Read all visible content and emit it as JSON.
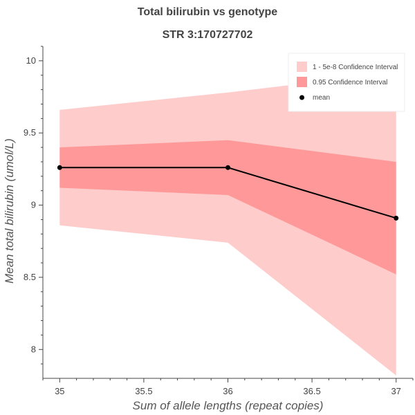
{
  "chart_data": {
    "type": "area",
    "title": "Total bilirubin vs genotype",
    "subtitle": "STR 3:170727702",
    "xlabel": "Sum of allele lengths (repeat copies)",
    "ylabel": "Mean total bilirubin (umol/L)",
    "x": [
      35,
      36,
      37
    ],
    "xlim": [
      34.9,
      37.1
    ],
    "ylim": [
      7.8,
      10.1
    ],
    "xticks": [
      35,
      35.5,
      36,
      36.5,
      37
    ],
    "xtick_labels": [
      "35",
      "35.5",
      "36",
      "36.5",
      "37"
    ],
    "yticks": [
      8,
      8.5,
      9,
      9.5,
      10
    ],
    "ytick_labels": [
      "8",
      "8.5",
      "9",
      "9.5",
      "10"
    ],
    "grid": false,
    "legend_position": "top-right",
    "series": [
      {
        "name": "1 - 5e-8 Confidence Interval",
        "kind": "band",
        "lower": [
          8.86,
          8.74,
          7.82
        ],
        "upper": [
          9.66,
          9.78,
          9.92
        ],
        "color": "#ffcccc"
      },
      {
        "name": "0.95 Confidence Interval",
        "kind": "band",
        "lower": [
          9.12,
          9.07,
          8.52
        ],
        "upper": [
          9.4,
          9.45,
          9.3
        ],
        "color": "#ff9999"
      },
      {
        "name": "mean",
        "kind": "line",
        "values": [
          9.26,
          9.26,
          8.91
        ],
        "color": "#000000"
      }
    ]
  }
}
